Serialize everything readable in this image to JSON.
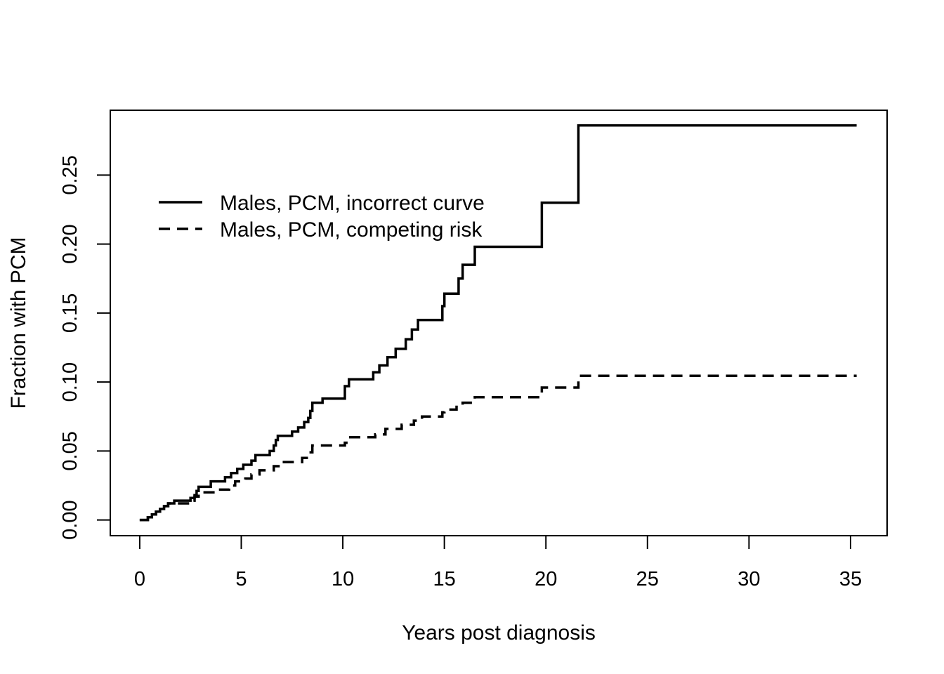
{
  "chart_data": {
    "type": "line",
    "title": "",
    "xlabel": "Years post diagnosis",
    "ylabel": "Fraction with PCM",
    "xlim": [
      -1.45,
      36.8
    ],
    "ylim": [
      -0.0114,
      0.297
    ],
    "xticks": [
      0,
      5,
      10,
      15,
      20,
      25,
      30,
      35
    ],
    "xtick_labels": [
      "0",
      "5",
      "10",
      "15",
      "20",
      "25",
      "30",
      "35"
    ],
    "yticks": [
      0.0,
      0.05,
      0.1,
      0.15,
      0.2,
      0.25
    ],
    "ytick_labels": [
      "0.00",
      "0.05",
      "0.10",
      "0.15",
      "0.20",
      "0.25"
    ],
    "grid": false,
    "legend_position": "top-left",
    "line_color": "#000000",
    "series": [
      {
        "name": "Males, PCM, incorrect curve",
        "style": "solid",
        "step": true,
        "points": [
          [
            0,
            0
          ],
          [
            0.4,
            0.002
          ],
          [
            0.6,
            0.004
          ],
          [
            0.8,
            0.006
          ],
          [
            1.0,
            0.008
          ],
          [
            1.2,
            0.01
          ],
          [
            1.4,
            0.012
          ],
          [
            1.7,
            0.014
          ],
          [
            2.5,
            0.016
          ],
          [
            2.7,
            0.018
          ],
          [
            2.8,
            0.021
          ],
          [
            2.9,
            0.024
          ],
          [
            3.5,
            0.028
          ],
          [
            4.2,
            0.031
          ],
          [
            4.5,
            0.034
          ],
          [
            4.8,
            0.037
          ],
          [
            5.1,
            0.04
          ],
          [
            5.5,
            0.043
          ],
          [
            5.7,
            0.047
          ],
          [
            6.4,
            0.05
          ],
          [
            6.6,
            0.054
          ],
          [
            6.7,
            0.058
          ],
          [
            6.8,
            0.061
          ],
          [
            7.5,
            0.064
          ],
          [
            7.8,
            0.067
          ],
          [
            8.1,
            0.071
          ],
          [
            8.3,
            0.074
          ],
          [
            8.4,
            0.079
          ],
          [
            8.5,
            0.085
          ],
          [
            9.0,
            0.088
          ],
          [
            10.1,
            0.097
          ],
          [
            10.3,
            0.102
          ],
          [
            11.5,
            0.107
          ],
          [
            11.8,
            0.112
          ],
          [
            12.2,
            0.118
          ],
          [
            12.6,
            0.124
          ],
          [
            13.1,
            0.131
          ],
          [
            13.4,
            0.138
          ],
          [
            13.7,
            0.145
          ],
          [
            14.9,
            0.155
          ],
          [
            15.0,
            0.164
          ],
          [
            15.7,
            0.175
          ],
          [
            15.9,
            0.185
          ],
          [
            16.5,
            0.198
          ],
          [
            19.8,
            0.23
          ],
          [
            21.6,
            0.286
          ],
          [
            35.3,
            0.286
          ]
        ]
      },
      {
        "name": "Males, PCM, competing risk",
        "style": "dashed",
        "step": true,
        "points": [
          [
            0,
            0
          ],
          [
            0.4,
            0.002
          ],
          [
            0.6,
            0.004
          ],
          [
            0.8,
            0.006
          ],
          [
            1.0,
            0.008
          ],
          [
            1.2,
            0.01
          ],
          [
            1.4,
            0.012
          ],
          [
            2.5,
            0.014
          ],
          [
            2.7,
            0.017
          ],
          [
            2.9,
            0.02
          ],
          [
            3.9,
            0.022
          ],
          [
            4.4,
            0.025
          ],
          [
            4.7,
            0.028
          ],
          [
            5.2,
            0.03
          ],
          [
            5.5,
            0.033
          ],
          [
            5.9,
            0.036
          ],
          [
            6.6,
            0.039
          ],
          [
            7.1,
            0.042
          ],
          [
            8.0,
            0.045
          ],
          [
            8.3,
            0.049
          ],
          [
            8.5,
            0.054
          ],
          [
            10.1,
            0.056
          ],
          [
            10.3,
            0.06
          ],
          [
            11.6,
            0.062
          ],
          [
            12.1,
            0.066
          ],
          [
            12.9,
            0.069
          ],
          [
            13.5,
            0.072
          ],
          [
            13.9,
            0.075
          ],
          [
            14.9,
            0.078
          ],
          [
            15.0,
            0.08
          ],
          [
            15.6,
            0.083
          ],
          [
            15.9,
            0.085
          ],
          [
            16.4,
            0.088
          ],
          [
            16.5,
            0.089
          ],
          [
            19.8,
            0.096
          ],
          [
            21.6,
            0.1045
          ],
          [
            35.3,
            0.1045
          ]
        ]
      }
    ]
  }
}
